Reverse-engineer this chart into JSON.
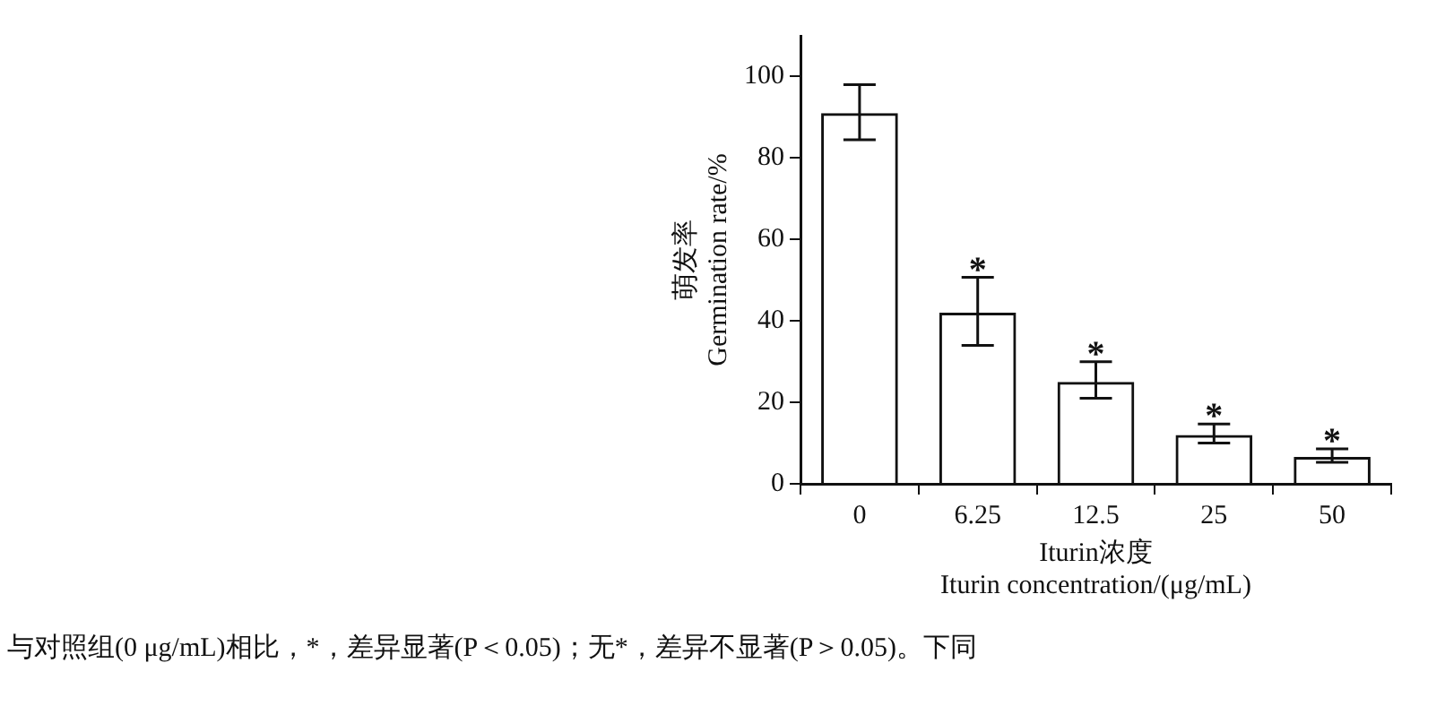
{
  "chart_data": {
    "type": "bar",
    "xlabel": "Iturin浓度\nIturin concentration/(μg/mL)",
    "ylabel": "萌发率\nGermination rate/%",
    "categories": [
      "0",
      "6.25",
      "12.5",
      "25",
      "50"
    ],
    "values": [
      91,
      42,
      25,
      12,
      6.6
    ],
    "errors": [
      [
        84.5,
        98
      ],
      [
        34,
        50.7
      ],
      [
        21,
        30
      ],
      [
        10,
        14.7
      ],
      [
        5.3,
        8.6
      ]
    ],
    "color": "#111111",
    "ylim": [
      0,
      110
    ],
    "yticks": [
      0,
      20,
      40,
      60,
      80,
      100
    ],
    "grid": false,
    "legend": false,
    "annotations": [
      {
        "text": "*",
        "x": "6.25",
        "y": 50.7
      },
      {
        "text": "*",
        "x": "12.5",
        "y": 30
      },
      {
        "text": "*",
        "x": "25",
        "y": 14.7
      },
      {
        "text": "*",
        "x": "50",
        "y": 8.6
      },
      "与对照组(0 μg/mL)相比，*，差异显著(P＜0.05)；无*，差异不显著(P＞0.05)。下同"
    ]
  }
}
